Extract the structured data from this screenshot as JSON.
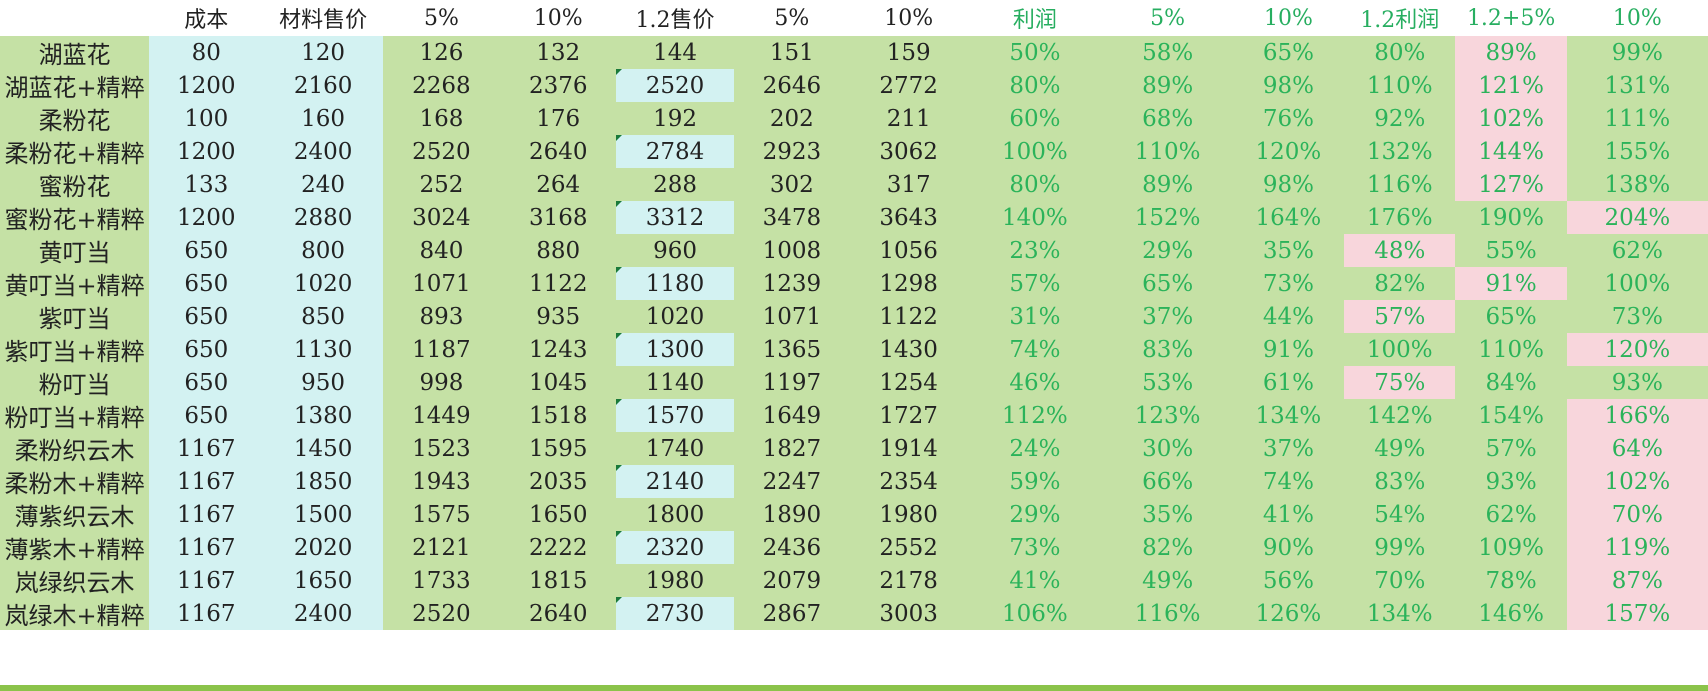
{
  "headers": [
    "",
    "成本",
    "材料售价",
    "5%",
    "10%",
    "1.2售价",
    "5%",
    "10%",
    "利润",
    "5%",
    "10%",
    "1.2利润",
    "1.2+5%",
    "10%"
  ],
  "rows": [
    {
      "name": "湖蓝花",
      "cost": "80",
      "price": "120",
      "p5": "126",
      "p10": "132",
      "p12": "144",
      "p12_5": "151",
      "p12_10": "159",
      "profit": "50%",
      "pr5": "58%",
      "pr10": "65%",
      "pr12": "80%",
      "pr12_5": "89%",
      "pr12_10": "99%",
      "pink": [
        12
      ]
    },
    {
      "name": "湖蓝花+精粹",
      "cost": "1200",
      "price": "2160",
      "p5": "2268",
      "p10": "2376",
      "p12": "2520",
      "p12_5": "2646",
      "p12_10": "2772",
      "profit": "80%",
      "pr5": "89%",
      "pr10": "98%",
      "pr12": "110%",
      "pr12_5": "121%",
      "pr12_10": "131%",
      "pink": [
        12
      ],
      "cyan12": true
    },
    {
      "name": "柔粉花",
      "cost": "100",
      "price": "160",
      "p5": "168",
      "p10": "176",
      "p12": "192",
      "p12_5": "202",
      "p12_10": "211",
      "profit": "60%",
      "pr5": "68%",
      "pr10": "76%",
      "pr12": "92%",
      "pr12_5": "102%",
      "pr12_10": "111%",
      "pink": [
        12
      ]
    },
    {
      "name": "柔粉花+精粹",
      "cost": "1200",
      "price": "2400",
      "p5": "2520",
      "p10": "2640",
      "p12": "2784",
      "p12_5": "2923",
      "p12_10": "3062",
      "profit": "100%",
      "pr5": "110%",
      "pr10": "120%",
      "pr12": "132%",
      "pr12_5": "144%",
      "pr12_10": "155%",
      "pink": [
        12
      ],
      "cyan12": true
    },
    {
      "name": "蜜粉花",
      "cost": "133",
      "price": "240",
      "p5": "252",
      "p10": "264",
      "p12": "288",
      "p12_5": "302",
      "p12_10": "317",
      "profit": "80%",
      "pr5": "89%",
      "pr10": "98%",
      "pr12": "116%",
      "pr12_5": "127%",
      "pr12_10": "138%",
      "pink": [
        12
      ]
    },
    {
      "name": "蜜粉花+精粹",
      "cost": "1200",
      "price": "2880",
      "p5": "3024",
      "p10": "3168",
      "p12": "3312",
      "p12_5": "3478",
      "p12_10": "3643",
      "profit": "140%",
      "pr5": "152%",
      "pr10": "164%",
      "pr12": "176%",
      "pr12_5": "190%",
      "pr12_10": "204%",
      "pink": [
        13
      ],
      "cyan12": true
    },
    {
      "name": "黄叮当",
      "cost": "650",
      "price": "800",
      "p5": "840",
      "p10": "880",
      "p12": "960",
      "p12_5": "1008",
      "p12_10": "1056",
      "profit": "23%",
      "pr5": "29%",
      "pr10": "35%",
      "pr12": "48%",
      "pr12_5": "55%",
      "pr12_10": "62%",
      "pink": [
        11
      ]
    },
    {
      "name": "黄叮当+精粹",
      "cost": "650",
      "price": "1020",
      "p5": "1071",
      "p10": "1122",
      "p12": "1180",
      "p12_5": "1239",
      "p12_10": "1298",
      "profit": "57%",
      "pr5": "65%",
      "pr10": "73%",
      "pr12": "82%",
      "pr12_5": "91%",
      "pr12_10": "100%",
      "pink": [
        12
      ],
      "cyan12": true
    },
    {
      "name": "紫叮当",
      "cost": "650",
      "price": "850",
      "p5": "893",
      "p10": "935",
      "p12": "1020",
      "p12_5": "1071",
      "p12_10": "1122",
      "profit": "31%",
      "pr5": "37%",
      "pr10": "44%",
      "pr12": "57%",
      "pr12_5": "65%",
      "pr12_10": "73%",
      "pink": [
        11
      ]
    },
    {
      "name": "紫叮当+精粹",
      "cost": "650",
      "price": "1130",
      "p5": "1187",
      "p10": "1243",
      "p12": "1300",
      "p12_5": "1365",
      "p12_10": "1430",
      "profit": "74%",
      "pr5": "83%",
      "pr10": "91%",
      "pr12": "100%",
      "pr12_5": "110%",
      "pr12_10": "120%",
      "pink": [
        13
      ],
      "cyan12": true
    },
    {
      "name": "粉叮当",
      "cost": "650",
      "price": "950",
      "p5": "998",
      "p10": "1045",
      "p12": "1140",
      "p12_5": "1197",
      "p12_10": "1254",
      "profit": "46%",
      "pr5": "53%",
      "pr10": "61%",
      "pr12": "75%",
      "pr12_5": "84%",
      "pr12_10": "93%",
      "pink": [
        11
      ]
    },
    {
      "name": "粉叮当+精粹",
      "cost": "650",
      "price": "1380",
      "p5": "1449",
      "p10": "1518",
      "p12": "1570",
      "p12_5": "1649",
      "p12_10": "1727",
      "profit": "112%",
      "pr5": "123%",
      "pr10": "134%",
      "pr12": "142%",
      "pr12_5": "154%",
      "pr12_10": "166%",
      "pink": [
        13
      ],
      "cyan12": true
    },
    {
      "name": "柔粉织云木",
      "cost": "1167",
      "price": "1450",
      "p5": "1523",
      "p10": "1595",
      "p12": "1740",
      "p12_5": "1827",
      "p12_10": "1914",
      "profit": "24%",
      "pr5": "30%",
      "pr10": "37%",
      "pr12": "49%",
      "pr12_5": "57%",
      "pr12_10": "64%",
      "pink": [
        13
      ]
    },
    {
      "name": "柔粉木+精粹",
      "cost": "1167",
      "price": "1850",
      "p5": "1943",
      "p10": "2035",
      "p12": "2140",
      "p12_5": "2247",
      "p12_10": "2354",
      "profit": "59%",
      "pr5": "66%",
      "pr10": "74%",
      "pr12": "83%",
      "pr12_5": "93%",
      "pr12_10": "102%",
      "pink": [
        13
      ],
      "cyan12": true
    },
    {
      "name": "薄紫织云木",
      "cost": "1167",
      "price": "1500",
      "p5": "1575",
      "p10": "1650",
      "p12": "1800",
      "p12_5": "1890",
      "p12_10": "1980",
      "profit": "29%",
      "pr5": "35%",
      "pr10": "41%",
      "pr12": "54%",
      "pr12_5": "62%",
      "pr12_10": "70%",
      "pink": [
        13
      ]
    },
    {
      "name": "薄紫木+精粹",
      "cost": "1167",
      "price": "2020",
      "p5": "2121",
      "p10": "2222",
      "p12": "2320",
      "p12_5": "2436",
      "p12_10": "2552",
      "profit": "73%",
      "pr5": "82%",
      "pr10": "90%",
      "pr12": "99%",
      "pr12_5": "109%",
      "pr12_10": "119%",
      "pink": [
        13
      ],
      "cyan12": true
    },
    {
      "name": "岚绿织云木",
      "cost": "1167",
      "price": "1650",
      "p5": "1733",
      "p10": "1815",
      "p12": "1980",
      "p12_5": "2079",
      "p12_10": "2178",
      "profit": "41%",
      "pr5": "49%",
      "pr10": "56%",
      "pr12": "70%",
      "pr12_5": "78%",
      "pr12_10": "87%",
      "pink": [
        13
      ]
    },
    {
      "name": "岚绿木+精粹",
      "cost": "1167",
      "price": "2400",
      "p5": "2520",
      "p10": "2640",
      "p12": "2730",
      "p12_5": "2867",
      "p12_10": "3003",
      "profit": "106%",
      "pr5": "116%",
      "pr10": "126%",
      "pr12": "134%",
      "pr12_5": "146%",
      "pr12_10": "157%",
      "pink": [
        13
      ],
      "cyan12": true
    }
  ],
  "colors": {
    "row_bg": "#c5e1a5",
    "cyan": "#d3f2f2",
    "pink": "#f8d6dc",
    "green_text": "#2bb35a",
    "header_rule": "#2e8b57"
  }
}
